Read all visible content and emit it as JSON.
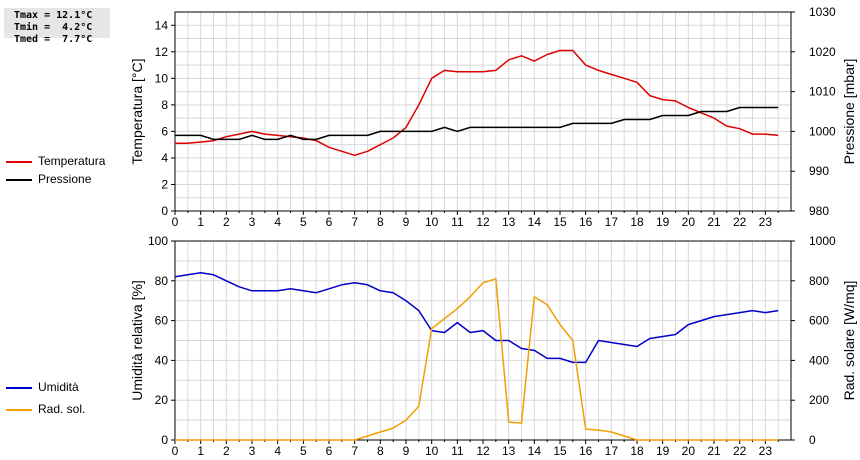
{
  "stats": {
    "tmax": "Tmax = 12.1°C",
    "tmin": "Tmin =  4.2°C",
    "tmed": "Tmed =  7.7°C"
  },
  "legend_top": [
    {
      "label": "Temperatura",
      "color": "#e00000"
    },
    {
      "label": "Pressione",
      "color": "#000000"
    }
  ],
  "legend_bottom": [
    {
      "label": "Umidità",
      "color": "#0000cc"
    },
    {
      "label": "Rad. sol.",
      "color": "#f0a000"
    }
  ],
  "chart_data": [
    {
      "type": "line",
      "xlim": [
        0,
        24
      ],
      "xticks": [
        "0",
        "1",
        "2",
        "3",
        "4",
        "5",
        "6",
        "7",
        "8",
        "9",
        "10",
        "11",
        "12",
        "13",
        "14",
        "15",
        "16",
        "17",
        "18",
        "19",
        "20",
        "21",
        "22",
        "23"
      ],
      "ylabel": "Temperatura [°C]",
      "ylim": [
        0,
        15
      ],
      "yticks": [
        "0",
        "2",
        "4",
        "6",
        "8",
        "10",
        "12",
        "14"
      ],
      "y2label": "Pressione [mbar]",
      "y2lim": [
        980,
        1030
      ],
      "y2ticks": [
        "980",
        "990",
        "1000",
        "1010",
        "1020",
        "1030"
      ],
      "grid": true,
      "series": [
        {
          "name": "Temperatura",
          "axis": "left",
          "color": "#e00000",
          "x": [
            0,
            0.5,
            1,
            1.5,
            2,
            2.5,
            3,
            3.5,
            4,
            4.5,
            5,
            5.5,
            6,
            6.5,
            7,
            7.5,
            8,
            8.5,
            9,
            9.5,
            10,
            10.5,
            11,
            11.5,
            12,
            12.5,
            13,
            13.5,
            14,
            14.5,
            15,
            15.5,
            16,
            16.5,
            17,
            17.5,
            18,
            18.5,
            19,
            19.5,
            20,
            20.5,
            21,
            21.5,
            22,
            22.5,
            23,
            23.5
          ],
          "y": [
            5.1,
            5.1,
            5.2,
            5.3,
            5.6,
            5.8,
            6.0,
            5.8,
            5.7,
            5.6,
            5.5,
            5.3,
            4.8,
            4.5,
            4.2,
            4.5,
            5.0,
            5.5,
            6.3,
            8.0,
            10.0,
            10.6,
            10.5,
            10.5,
            10.5,
            10.6,
            11.4,
            11.7,
            11.3,
            11.8,
            12.1,
            12.1,
            11.0,
            10.6,
            10.3,
            10.0,
            9.7,
            8.7,
            8.4,
            8.3,
            7.8,
            7.4,
            7.0,
            6.4,
            6.2,
            5.8,
            5.8,
            5.7
          ]
        },
        {
          "name": "Pressione",
          "axis": "right",
          "color": "#000000",
          "x": [
            0,
            0.5,
            1,
            1.5,
            2,
            2.5,
            3,
            3.5,
            4,
            4.5,
            5,
            5.5,
            6,
            6.5,
            7,
            7.5,
            8,
            8.5,
            9,
            9.5,
            10,
            10.5,
            11,
            11.5,
            12,
            12.5,
            13,
            13.5,
            14,
            14.5,
            15,
            15.5,
            16,
            16.5,
            17,
            17.5,
            18,
            18.5,
            19,
            19.5,
            20,
            20.5,
            21,
            21.5,
            22,
            22.5,
            23,
            23.5
          ],
          "y": [
            999,
            999,
            999,
            998,
            998,
            998,
            999,
            998,
            998,
            999,
            998,
            998,
            999,
            999,
            999,
            999,
            1000,
            1000,
            1000,
            1000,
            1000,
            1001,
            1000,
            1001,
            1001,
            1001,
            1001,
            1001,
            1001,
            1001,
            1001,
            1002,
            1002,
            1002,
            1002,
            1003,
            1003,
            1003,
            1004,
            1004,
            1004,
            1005,
            1005,
            1005,
            1006,
            1006,
            1006,
            1006
          ]
        }
      ]
    },
    {
      "type": "line",
      "xlim": [
        0,
        24
      ],
      "xticks": [
        "0",
        "1",
        "2",
        "3",
        "4",
        "5",
        "6",
        "7",
        "8",
        "9",
        "10",
        "11",
        "12",
        "13",
        "14",
        "15",
        "16",
        "17",
        "18",
        "19",
        "20",
        "21",
        "22",
        "23"
      ],
      "ylabel": "Umidità relativa [%]",
      "ylim": [
        0,
        100
      ],
      "yticks": [
        "0",
        "20",
        "40",
        "60",
        "80",
        "100"
      ],
      "y2label": "Rad. solare [W/mq]",
      "y2lim": [
        0,
        1000
      ],
      "y2ticks": [
        "0",
        "200",
        "400",
        "600",
        "800",
        "1000"
      ],
      "grid": true,
      "series": [
        {
          "name": "Umidità",
          "axis": "left",
          "color": "#0000cc",
          "x": [
            0,
            0.5,
            1,
            1.5,
            2,
            2.5,
            3,
            3.5,
            4,
            4.5,
            5,
            5.5,
            6,
            6.5,
            7,
            7.5,
            8,
            8.5,
            9,
            9.5,
            10,
            10.5,
            11,
            11.5,
            12,
            12.5,
            13,
            13.5,
            14,
            14.5,
            15,
            15.5,
            16,
            16.5,
            17,
            17.5,
            18,
            18.5,
            19,
            19.5,
            20,
            20.5,
            21,
            21.5,
            22,
            22.5,
            23,
            23.5
          ],
          "y": [
            82,
            83,
            84,
            83,
            80,
            77,
            75,
            75,
            75,
            76,
            75,
            74,
            76,
            78,
            79,
            78,
            75,
            74,
            70,
            65,
            55,
            54,
            59,
            54,
            55,
            50,
            50,
            46,
            45,
            41,
            41,
            39,
            39,
            50,
            49,
            48,
            47,
            51,
            52,
            53,
            58,
            60,
            62,
            63,
            64,
            65,
            64,
            65
          ]
        },
        {
          "name": "Rad. sol.",
          "axis": "right",
          "color": "#f0a000",
          "x": [
            0,
            0.5,
            1,
            1.5,
            2,
            2.5,
            3,
            3.5,
            4,
            4.5,
            5,
            5.5,
            6,
            6.5,
            7,
            7.5,
            8,
            8.5,
            9,
            9.5,
            10,
            10.5,
            11,
            11.5,
            12,
            12.5,
            13,
            13.5,
            14,
            14.5,
            15,
            15.5,
            16,
            16.5,
            17,
            17.5,
            18,
            18.5,
            19,
            19.5,
            20,
            20.5,
            21,
            21.5,
            22,
            22.5,
            23,
            23.5
          ],
          "y": [
            0,
            0,
            0,
            0,
            0,
            0,
            0,
            0,
            0,
            0,
            0,
            0,
            0,
            0,
            0,
            20,
            40,
            60,
            100,
            170,
            560,
            610,
            660,
            720,
            790,
            810,
            90,
            85,
            720,
            680,
            580,
            500,
            55,
            50,
            40,
            20,
            0,
            0,
            0,
            0,
            0,
            0,
            0,
            0,
            0,
            0,
            0,
            0
          ]
        }
      ]
    }
  ]
}
